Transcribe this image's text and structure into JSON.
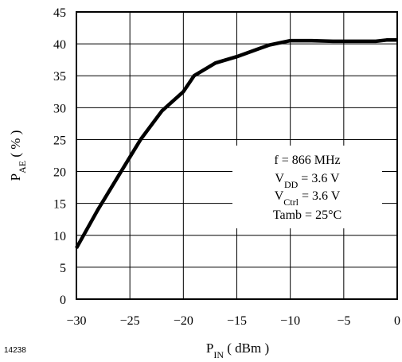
{
  "chart_data": {
    "type": "line",
    "xlabel": {
      "main": "P",
      "sub": "IN",
      "unit": " ( dBm )"
    },
    "ylabel": {
      "main": "P",
      "sub": "AE",
      "unit": " ( % )"
    },
    "xlim": [
      -30,
      0
    ],
    "ylim": [
      0,
      45
    ],
    "x_ticks": [
      -30,
      -25,
      -20,
      -15,
      -10,
      -5,
      0
    ],
    "x_tick_labels": [
      "−30",
      "−25",
      "−20",
      "−15",
      "−10",
      "−5",
      "0"
    ],
    "y_ticks": [
      0,
      5,
      10,
      15,
      20,
      25,
      30,
      35,
      40,
      45
    ],
    "y_tick_labels": [
      "0",
      "5",
      "10",
      "15",
      "20",
      "25",
      "30",
      "35",
      "40",
      "45"
    ],
    "grid": true,
    "series": [
      {
        "x": [
          -30,
          -28,
          -26,
          -24,
          -22,
          -20,
          -19,
          -17,
          -15,
          -13,
          -12,
          -10,
          -8,
          -6,
          -4,
          -2,
          -1,
          0
        ],
        "y": [
          8,
          14,
          19.5,
          25,
          29.5,
          32.5,
          35,
          37,
          38,
          39.2,
          39.8,
          40.5,
          40.5,
          40.4,
          40.4,
          40.4,
          40.6,
          40.6
        ]
      }
    ],
    "annotations": [
      {
        "parts": [
          {
            "t": "f = 866 MHz"
          }
        ]
      },
      {
        "parts": [
          {
            "t": "V"
          },
          {
            "t": "DD",
            "sub": true
          },
          {
            "t": " = 3.6 V"
          }
        ]
      },
      {
        "parts": [
          {
            "t": "V"
          },
          {
            "t": "Ctrl",
            "sub": true
          },
          {
            "t": " = 3.6 V"
          }
        ]
      },
      {
        "parts": [
          {
            "t": "Tamb = 25°C"
          }
        ]
      }
    ]
  },
  "figure_id": "14238",
  "colors": {
    "line": "#000000",
    "grid": "#000000",
    "background": "#ffffff"
  }
}
